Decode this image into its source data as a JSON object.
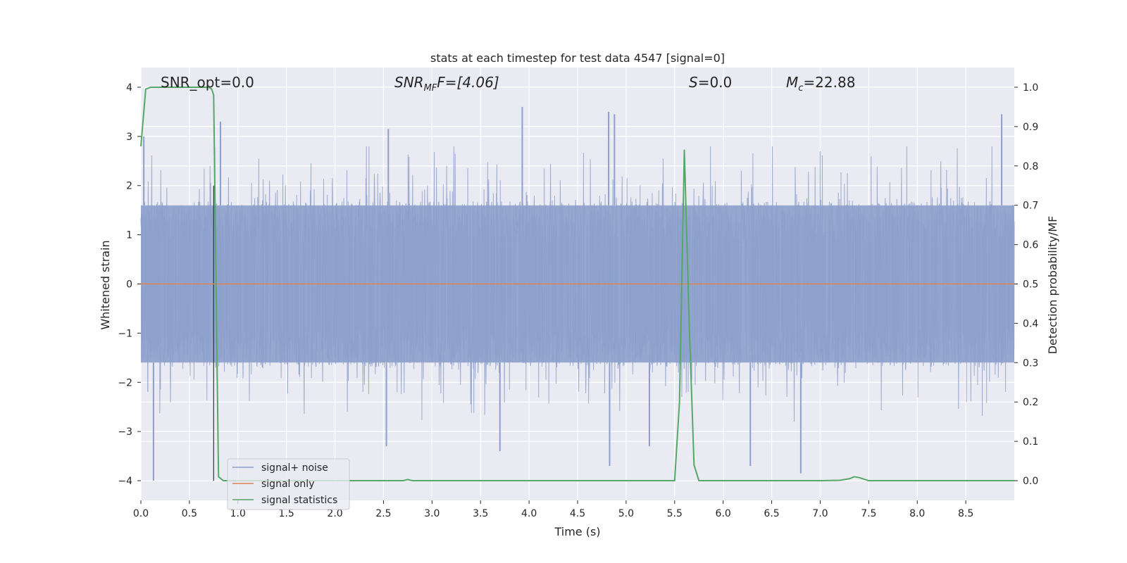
{
  "chart_data": {
    "type": "line",
    "title": "stats at each timestep for test data 4547 [signal=0]",
    "xlabel": "Time (s)",
    "ylabel_left": "Whitened strain",
    "ylabel_right": "Detection probability/MF",
    "xlim": [
      0.0,
      9.0
    ],
    "ylim_left": [
      -4.4,
      4.4
    ],
    "ylim_right": [
      -0.05,
      1.05
    ],
    "x_ticks": [
      0.0,
      0.5,
      1.0,
      1.5,
      2.0,
      2.5,
      3.0,
      3.5,
      4.0,
      4.5,
      5.0,
      5.5,
      6.0,
      6.5,
      7.0,
      7.5,
      8.0,
      8.5
    ],
    "x_tick_labels": [
      "0.0",
      "0.5",
      "1.0",
      "1.5",
      "2.0",
      "2.5",
      "3.0",
      "3.5",
      "4.0",
      "4.5",
      "5.0",
      "5.5",
      "6.0",
      "6.5",
      "7.0",
      "7.5",
      "8.0",
      "8.5"
    ],
    "y_ticks_left": [
      -4,
      -3,
      -2,
      -1,
      0,
      1,
      2,
      3,
      4
    ],
    "y_tick_labels_left": [
      "−4",
      "−3",
      "−2",
      "−1",
      "0",
      "1",
      "2",
      "3",
      "4"
    ],
    "y_ticks_right": [
      0.0,
      0.1,
      0.2,
      0.3,
      0.4,
      0.5,
      0.6,
      0.7,
      0.8,
      0.9,
      1.0
    ],
    "y_tick_labels_right": [
      "0.0",
      "0.1",
      "0.2",
      "0.3",
      "0.4",
      "0.5",
      "0.6",
      "0.7",
      "0.8",
      "0.9",
      "1.0"
    ],
    "grid": true,
    "legend_position": "lower-left",
    "annotations": {
      "snr_opt": "SNR_opt=0.0",
      "snr_mf_base": "SNR",
      "snr_mf_sub": "MF",
      "snr_mf_value": "F=[4.06]",
      "s_var": "S",
      "s_value": "=0.0",
      "mc_base": "M",
      "mc_sub": "c",
      "mc_value": "=22.88"
    },
    "series": [
      {
        "name": "signal+ noise",
        "color": "#8da0cb",
        "axis": "left",
        "description_values": {
          "typical_envelope": [
            -1.6,
            1.6
          ],
          "peaks": [
            {
              "x": 0.03,
              "y": 3.0
            },
            {
              "x": 0.13,
              "y": -4.0
            },
            {
              "x": 0.82,
              "y": 3.3
            },
            {
              "x": 2.55,
              "y": 3.15
            },
            {
              "x": 3.93,
              "y": 3.6
            },
            {
              "x": 4.82,
              "y": 3.5
            },
            {
              "x": 4.88,
              "y": 3.45
            },
            {
              "x": 4.83,
              "y": -3.7
            },
            {
              "x": 3.7,
              "y": -3.4
            },
            {
              "x": 6.28,
              "y": -3.7
            },
            {
              "x": 6.8,
              "y": -3.85
            },
            {
              "x": 8.87,
              "y": 3.45
            },
            {
              "x": 2.53,
              "y": -3.3
            },
            {
              "x": 5.24,
              "y": -3.3
            }
          ]
        }
      },
      {
        "name": "signal only",
        "color": "#dd8452",
        "axis": "left",
        "x": [
          0.0,
          9.0
        ],
        "y": [
          0.0,
          0.0
        ]
      },
      {
        "name": "signal statistics",
        "color": "#55a868",
        "axis": "right",
        "x": [
          0.0,
          0.05,
          0.1,
          0.15,
          0.3,
          0.5,
          0.65,
          0.7,
          0.73,
          0.75,
          0.8,
          0.85,
          1.0,
          2.0,
          2.7,
          2.75,
          2.8,
          3.0,
          4.0,
          5.0,
          5.5,
          5.55,
          5.6,
          5.65,
          5.7,
          5.75,
          6.0,
          7.0,
          7.2,
          7.3,
          7.35,
          7.4,
          7.5,
          8.0,
          9.0
        ],
        "y": [
          0.85,
          0.995,
          1.0,
          1.0,
          1.0,
          1.0,
          1.0,
          1.0,
          0.995,
          0.98,
          0.01,
          0.0,
          0.0,
          0.0,
          0.0,
          0.003,
          0.0,
          0.0,
          0.0,
          0.0,
          0.0,
          0.2,
          0.84,
          0.4,
          0.04,
          0.0,
          0.0,
          0.0,
          0.001,
          0.005,
          0.01,
          0.008,
          0.0,
          0.0,
          0.0
        ]
      }
    ],
    "vertical_marker": {
      "x": 0.75,
      "y_from": -4.0,
      "y_to": 2.0,
      "color": "#333333"
    }
  }
}
